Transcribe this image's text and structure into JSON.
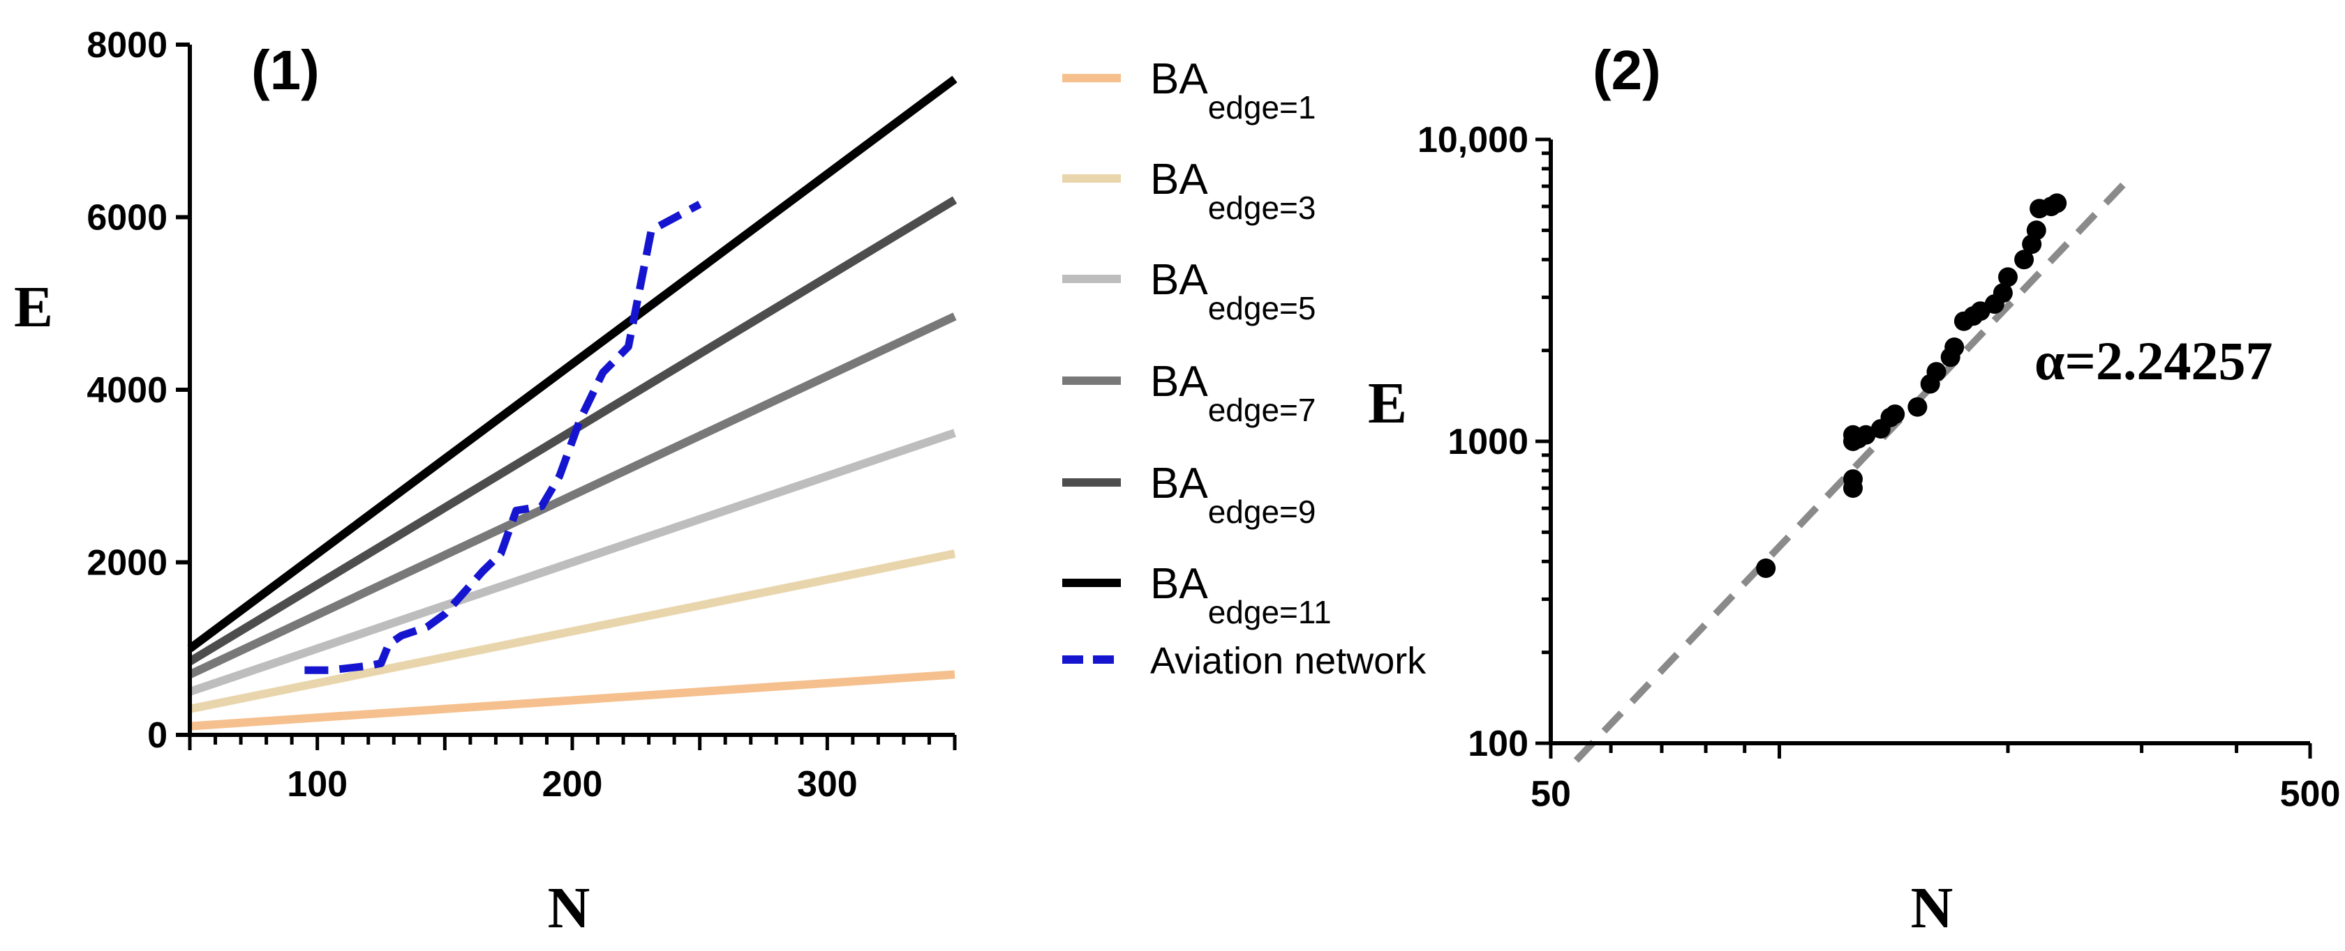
{
  "chart_data": [
    {
      "type": "line",
      "panel_label": "(1)",
      "xlabel": "N",
      "ylabel": "E",
      "xlim": [
        50,
        350
      ],
      "ylim": [
        0,
        8000
      ],
      "x_ticks": [
        100,
        200,
        300
      ],
      "y_ticks": [
        0,
        2000,
        4000,
        6000,
        8000
      ],
      "legend_position": "right",
      "series": [
        {
          "name": "BA",
          "subscript": "edge=1",
          "color": "#F5C08E",
          "style": "solid",
          "x": [
            50,
            350
          ],
          "y": [
            100,
            700
          ]
        },
        {
          "name": "BA",
          "subscript": "edge=3",
          "color": "#E8D5AC",
          "style": "solid",
          "x": [
            50,
            350
          ],
          "y": [
            300,
            2100
          ]
        },
        {
          "name": "BA",
          "subscript": "edge=5",
          "color": "#BDBDBD",
          "style": "solid",
          "x": [
            50,
            350
          ],
          "y": [
            500,
            3500
          ]
        },
        {
          "name": "BA",
          "subscript": "edge=7",
          "color": "#787878",
          "style": "solid",
          "x": [
            50,
            350
          ],
          "y": [
            700,
            4850
          ]
        },
        {
          "name": "BA",
          "subscript": "edge=9",
          "color": "#4D4D4D",
          "style": "solid",
          "x": [
            50,
            350
          ],
          "y": [
            850,
            6200
          ]
        },
        {
          "name": "BA",
          "subscript": "edge=11",
          "color": "#000000",
          "style": "solid",
          "x": [
            50,
            350
          ],
          "y": [
            1000,
            7600
          ]
        },
        {
          "name": "Aviation network",
          "subscript": "",
          "color": "#1515D0",
          "style": "dashed",
          "x": [
            95,
            105,
            120,
            125,
            128,
            133,
            143,
            150,
            165,
            172,
            178,
            188,
            195,
            203,
            212,
            222,
            226,
            231,
            250
          ],
          "y": [
            750,
            750,
            800,
            830,
            1050,
            1150,
            1250,
            1400,
            1900,
            2100,
            2600,
            2650,
            3000,
            3650,
            4200,
            4500,
            5100,
            5850,
            6150
          ]
        }
      ]
    },
    {
      "type": "scatter",
      "panel_label": "(2)",
      "xlabel": "N",
      "ylabel": "E",
      "x_scale": "log",
      "y_scale": "log",
      "xlim": [
        50,
        500
      ],
      "ylim": [
        100,
        10000
      ],
      "x_tick_labels": [
        {
          "value": 50,
          "label": "50"
        },
        {
          "value": 500,
          "label": "500"
        }
      ],
      "y_tick_labels": [
        {
          "value": 100,
          "label": "100"
        },
        {
          "value": 1000,
          "label": "1000"
        },
        {
          "value": 10000,
          "label": "10,000"
        }
      ],
      "annotation": "α=2.24257",
      "fit_line": {
        "color": "#8A8A8A",
        "style": "dashed",
        "x": [
          54,
          290
        ],
        "y": [
          87.7,
          7500
        ]
      },
      "points": {
        "color": "#000000",
        "x": [
          96,
          125,
          125,
          125,
          125,
          127,
          130,
          136,
          140,
          142,
          152,
          158,
          161,
          168,
          170,
          175,
          180,
          184,
          192,
          197,
          200,
          210,
          215,
          218,
          220,
          228,
          232
        ],
        "y": [
          380,
          700,
          750,
          1000,
          1050,
          1020,
          1050,
          1100,
          1200,
          1230,
          1300,
          1550,
          1700,
          1900,
          2050,
          2500,
          2600,
          2700,
          2850,
          3100,
          3500,
          4000,
          4500,
          5000,
          5900,
          6000,
          6150
        ]
      }
    }
  ]
}
